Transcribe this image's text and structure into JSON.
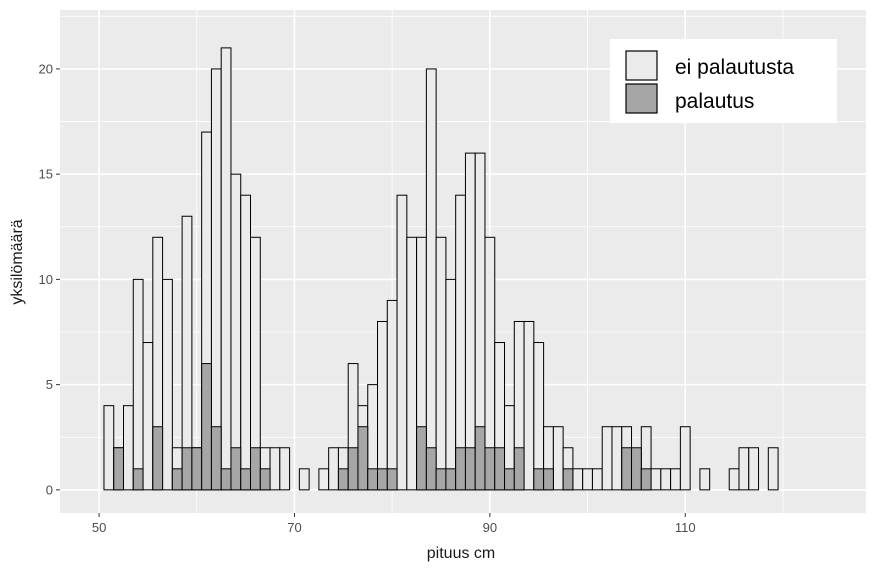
{
  "chart_data": {
    "type": "bar",
    "subtype": "histogram-overlay",
    "xlabel": "pituus cm",
    "ylabel": "yksilömäärä",
    "xlim": [
      46,
      128.5
    ],
    "ylim": [
      -1.1,
      22.8
    ],
    "bin_width": 1,
    "x_ticks": [
      50,
      70,
      90,
      110
    ],
    "y_ticks": [
      0,
      5,
      10,
      15,
      20
    ],
    "grid": true,
    "legend_position": "top-right",
    "colors": {
      "panel": "#ebebeb",
      "grid": "#ffffff",
      "ei_palautusta": "#ebebeb",
      "palautus": "#a6a6a6",
      "outline": "#000000"
    },
    "x": [
      51,
      52,
      53,
      54,
      55,
      56,
      57,
      58,
      59,
      60,
      61,
      62,
      63,
      64,
      65,
      66,
      67,
      68,
      69,
      70,
      71,
      72,
      73,
      74,
      75,
      76,
      77,
      78,
      79,
      80,
      81,
      82,
      83,
      84,
      85,
      86,
      87,
      88,
      89,
      90,
      91,
      92,
      93,
      94,
      95,
      96,
      97,
      98,
      99,
      100,
      101,
      102,
      103,
      104,
      105,
      106,
      107,
      108,
      109,
      110,
      111,
      112,
      113,
      114,
      115,
      116,
      117,
      118,
      119,
      120,
      121,
      122,
      123,
      124
    ],
    "series": [
      {
        "name": "ei palautusta",
        "values": [
          4,
          2,
          4,
          10,
          7,
          12,
          10,
          2,
          13,
          2,
          17,
          20,
          21,
          15,
          14,
          12,
          2,
          2,
          2,
          0,
          1,
          0,
          1,
          2,
          2,
          6,
          4,
          5,
          8,
          9,
          14,
          12,
          12,
          20,
          12,
          10,
          14,
          16,
          16,
          12,
          7,
          4,
          8,
          8,
          7,
          3,
          3,
          2,
          1,
          1,
          1,
          3,
          3,
          3,
          1,
          3,
          1,
          1,
          1,
          3,
          0,
          1,
          0,
          0,
          1,
          2,
          2,
          0,
          2,
          0,
          0,
          0,
          0,
          0
        ]
      },
      {
        "name": "palautus",
        "values": [
          0,
          2,
          0,
          1,
          0,
          3,
          0,
          1,
          2,
          2,
          6,
          3,
          1,
          2,
          1,
          2,
          1,
          0,
          0,
          0,
          0,
          0,
          0,
          0,
          1,
          2,
          3,
          1,
          1,
          1,
          0,
          0,
          3,
          2,
          1,
          1,
          2,
          2,
          3,
          2,
          2,
          1,
          2,
          0,
          1,
          1,
          0,
          1,
          0,
          0,
          0,
          0,
          0,
          2,
          2,
          1,
          0,
          0,
          0,
          0,
          0,
          0,
          0,
          0,
          0,
          0,
          0,
          0,
          0,
          0,
          0,
          0,
          0,
          0
        ]
      }
    ]
  }
}
